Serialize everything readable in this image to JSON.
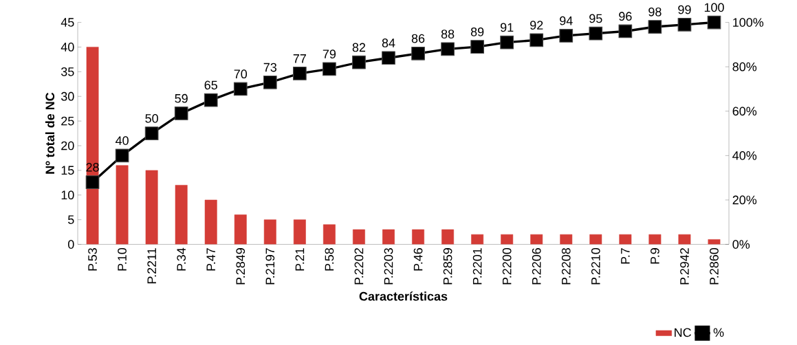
{
  "chart_data": {
    "type": "bar",
    "xlabel": "Características",
    "ylabel": "Nº total de NC",
    "categories": [
      "P.53",
      "P.10",
      "P.2211",
      "P.34",
      "P.47",
      "P.2849",
      "P.2197",
      "P.21",
      "P.58",
      "P.2202",
      "P.2203",
      "P.46",
      "P.2859",
      "P.2201",
      "P.2200",
      "P.2206",
      "P.2208",
      "P.2210",
      "P.7",
      "P.9",
      "P.2942",
      "P.2860"
    ],
    "series": [
      {
        "name": "NC",
        "color": "#d43c36",
        "values": [
          40,
          16,
          15,
          12,
          9,
          6,
          5,
          5,
          4,
          3,
          3,
          3,
          3,
          2,
          2,
          2,
          2,
          2,
          2,
          2,
          2,
          1
        ]
      },
      {
        "name": "%",
        "type": "line",
        "axis": "y2",
        "color": "#000000",
        "values": [
          28,
          40,
          50,
          59,
          65,
          70,
          73,
          77,
          79,
          82,
          84,
          86,
          88,
          89,
          91,
          92,
          94,
          95,
          96,
          98,
          99,
          100
        ],
        "value_labels": [
          "28",
          "40",
          "50",
          "59",
          "65",
          "70",
          "73",
          "77",
          "79",
          "82",
          "84",
          "86",
          "88",
          "89",
          "91",
          "92",
          "94",
          "95",
          "96",
          "98",
          "99",
          "100"
        ]
      }
    ],
    "ylim": [
      0,
      45
    ],
    "yticks": [
      0,
      5,
      10,
      15,
      20,
      25,
      30,
      35,
      40,
      45
    ],
    "y2lim": [
      0,
      100
    ],
    "y2ticks": [
      {
        "value": 0,
        "label": "0%"
      },
      {
        "value": 20,
        "label": "20%"
      },
      {
        "value": 40,
        "label": "40%"
      },
      {
        "value": 60,
        "label": "60%"
      },
      {
        "value": 80,
        "label": "80%"
      },
      {
        "value": 100,
        "label": "100%"
      }
    ],
    "marker": "square",
    "line_style": "solid",
    "grid": false,
    "legend": "bottom right"
  }
}
